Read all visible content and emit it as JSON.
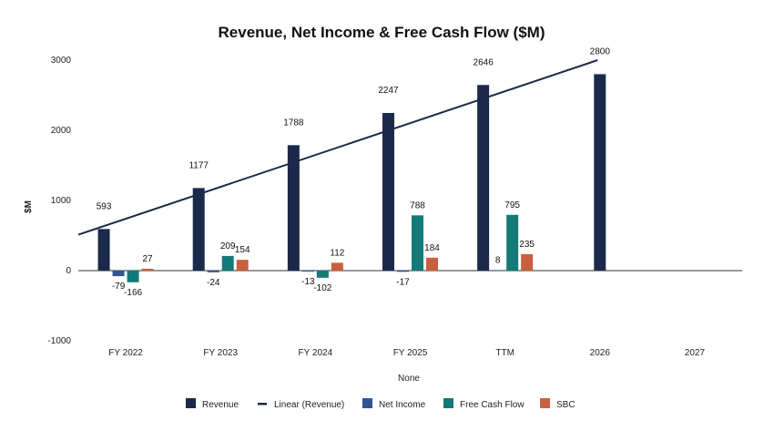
{
  "chart_data": {
    "type": "bar",
    "title": "Revenue, Net Income & Free Cash Flow  ($M)",
    "xlabel": "None",
    "ylabel": "$M",
    "ylim": [
      -1000,
      3000
    ],
    "yticks": [
      -1000,
      0,
      1000,
      2000,
      3000
    ],
    "grid": false,
    "legend_position": "bottom",
    "categories": [
      "FY 2022",
      "FY 2023",
      "FY 2024",
      "FY 2025",
      "TTM",
      "2026",
      "2027"
    ],
    "series": [
      {
        "name": "Revenue",
        "color": "#1b2a4a",
        "values": [
          593,
          1177,
          1788,
          2247,
          2646,
          2800,
          null
        ],
        "labels": [
          "593",
          "1177",
          "1788",
          "2247",
          "2646",
          "2800",
          ""
        ]
      },
      {
        "name": "Net Income",
        "color": "#2f5597",
        "values": [
          -79,
          -24,
          -13,
          -17,
          8,
          null,
          null
        ],
        "labels": [
          "-79",
          "-24",
          "-13",
          "-17",
          "8",
          "",
          ""
        ]
      },
      {
        "name": "Free Cash Flow",
        "color": "#137a78",
        "values": [
          -166,
          209,
          -102,
          788,
          795,
          null,
          null
        ],
        "labels": [
          "-166",
          "209",
          "-102",
          "788",
          "795",
          "",
          ""
        ]
      },
      {
        "name": "SBC",
        "color": "#c8603f",
        "values": [
          27,
          154,
          112,
          184,
          235,
          null,
          null
        ],
        "labels": [
          "27",
          "154",
          "112",
          "184",
          "235",
          "",
          ""
        ]
      }
    ],
    "trendline": {
      "name": "Linear (Revenue)",
      "color": "#1b2a4a",
      "of_series": "Revenue"
    },
    "legend": [
      "Revenue",
      "Linear (Revenue)",
      "Net Income",
      "Free Cash Flow",
      "SBC"
    ]
  }
}
